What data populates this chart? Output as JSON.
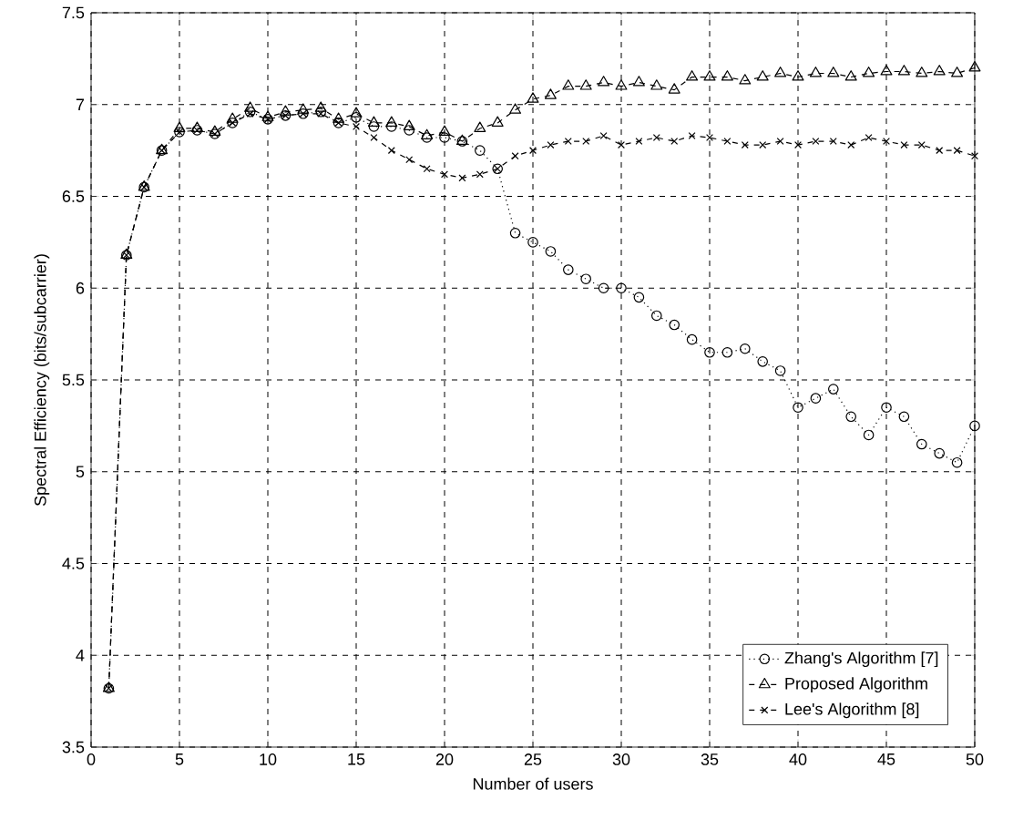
{
  "chart_data": {
    "type": "line",
    "xlabel": "Number of users",
    "ylabel": "Spectral Efficiency (bits/subcarrier)",
    "x": [
      1,
      2,
      3,
      4,
      5,
      6,
      7,
      8,
      9,
      10,
      11,
      12,
      13,
      14,
      15,
      16,
      17,
      18,
      19,
      20,
      21,
      22,
      23,
      24,
      25,
      26,
      27,
      28,
      29,
      30,
      31,
      32,
      33,
      34,
      35,
      36,
      37,
      38,
      39,
      40,
      41,
      42,
      43,
      44,
      45,
      46,
      47,
      48,
      49,
      50
    ],
    "series": [
      {
        "name": "Zhang's Algorithm [7]",
        "color": "#000000",
        "marker": "circle",
        "line_style": "dotted",
        "values": [
          3.82,
          6.18,
          6.55,
          6.75,
          6.85,
          6.86,
          6.84,
          6.9,
          6.96,
          6.92,
          6.94,
          6.95,
          6.96,
          6.9,
          6.93,
          6.88,
          6.88,
          6.86,
          6.82,
          6.82,
          6.8,
          6.75,
          6.65,
          6.3,
          6.25,
          6.2,
          6.1,
          6.05,
          6.0,
          6.0,
          5.95,
          5.85,
          5.8,
          5.72,
          5.65,
          5.65,
          5.67,
          5.6,
          5.55,
          5.35,
          5.4,
          5.45,
          5.3,
          5.2,
          5.35,
          5.3,
          5.15,
          5.1,
          5.05,
          5.25
        ]
      },
      {
        "name": "Proposed Algorithm",
        "color": "#000000",
        "marker": "triangle",
        "line_style": "dashed",
        "values": [
          3.82,
          6.18,
          6.55,
          6.75,
          6.87,
          6.87,
          6.85,
          6.92,
          6.98,
          6.93,
          6.96,
          6.97,
          6.98,
          6.92,
          6.95,
          6.9,
          6.9,
          6.88,
          6.83,
          6.85,
          6.8,
          6.87,
          6.9,
          6.97,
          7.03,
          7.05,
          7.1,
          7.1,
          7.12,
          7.1,
          7.12,
          7.1,
          7.08,
          7.15,
          7.15,
          7.15,
          7.13,
          7.15,
          7.17,
          7.15,
          7.17,
          7.17,
          7.15,
          7.17,
          7.18,
          7.18,
          7.17,
          7.18,
          7.17,
          7.2
        ]
      },
      {
        "name": "Lee's Algorithm [8]",
        "color": "#000000",
        "marker": "cross",
        "line_style": "dashed",
        "values": [
          3.82,
          6.18,
          6.55,
          6.75,
          6.85,
          6.86,
          6.84,
          6.9,
          6.95,
          6.92,
          6.94,
          6.95,
          6.95,
          6.9,
          6.88,
          6.82,
          6.75,
          6.7,
          6.65,
          6.62,
          6.6,
          6.62,
          6.65,
          6.72,
          6.75,
          6.78,
          6.8,
          6.8,
          6.83,
          6.78,
          6.8,
          6.82,
          6.8,
          6.83,
          6.82,
          6.8,
          6.78,
          6.78,
          6.8,
          6.78,
          6.8,
          6.8,
          6.78,
          6.82,
          6.8,
          6.78,
          6.78,
          6.75,
          6.75,
          6.72
        ]
      }
    ],
    "xlim": [
      0,
      50
    ],
    "xticks": [
      0,
      5,
      10,
      15,
      20,
      25,
      30,
      35,
      40,
      45,
      50
    ],
    "ylim": [
      3.5,
      7.5
    ],
    "yticks": [
      3.5,
      4,
      4.5,
      5,
      5.5,
      6,
      6.5,
      7,
      7.5
    ],
    "grid": true,
    "legend": "bottom right"
  }
}
